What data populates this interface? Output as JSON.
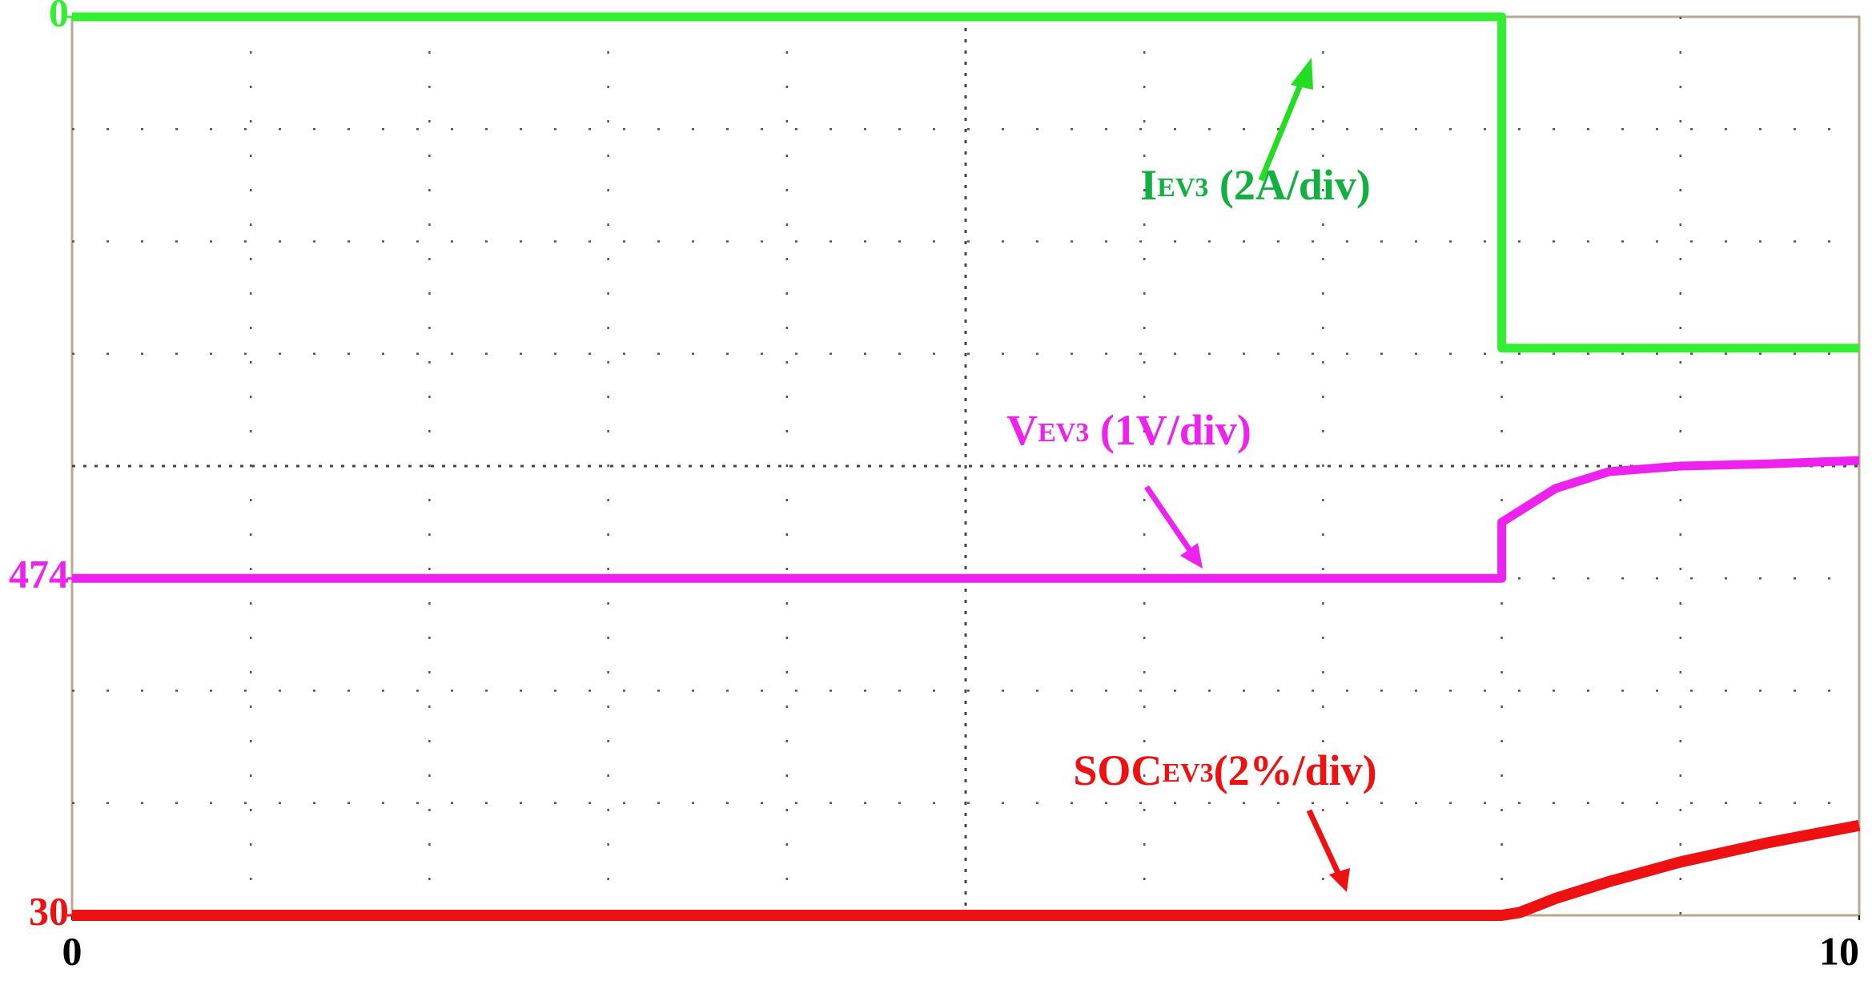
{
  "chart_data": {
    "type": "line",
    "xlim": [
      0,
      10
    ],
    "xticks": [
      0,
      10
    ],
    "x": [
      0,
      8,
      8,
      8.1,
      8.3,
      8.6,
      9,
      9.5,
      10
    ],
    "series": [
      {
        "name": "IEV3",
        "color": "#33ee33",
        "ylim": [
          -16,
          0
        ],
        "yticks": [
          0
        ],
        "values": [
          0,
          0,
          -5.9,
          -5.9,
          -5.9,
          -5.9,
          -5.9,
          -5.9,
          -5.9
        ],
        "annotation": {
          "main": "I",
          "sub": "EV3",
          "rest": " (2A/div)"
        }
      },
      {
        "name": "VEV3",
        "color": "#ee22ee",
        "ylim": [
          471,
          479
        ],
        "yticks": [
          474
        ],
        "values": [
          474,
          474,
          474.5,
          474.6,
          474.8,
          474.95,
          475,
          475.02,
          475.05
        ],
        "annotation": {
          "main": "V",
          "sub": "EV3",
          "rest": " (1V/div)"
        }
      },
      {
        "name": "SOCEV3",
        "color": "#ee1111",
        "ylim": [
          30,
          46
        ],
        "yticks": [
          30
        ],
        "values": [
          30,
          30,
          30,
          30.05,
          30.3,
          30.6,
          30.95,
          31.3,
          31.6
        ],
        "annotation": {
          "main": "SOC",
          "sub": "EV3",
          "rest": "(2%/div)"
        }
      }
    ]
  }
}
